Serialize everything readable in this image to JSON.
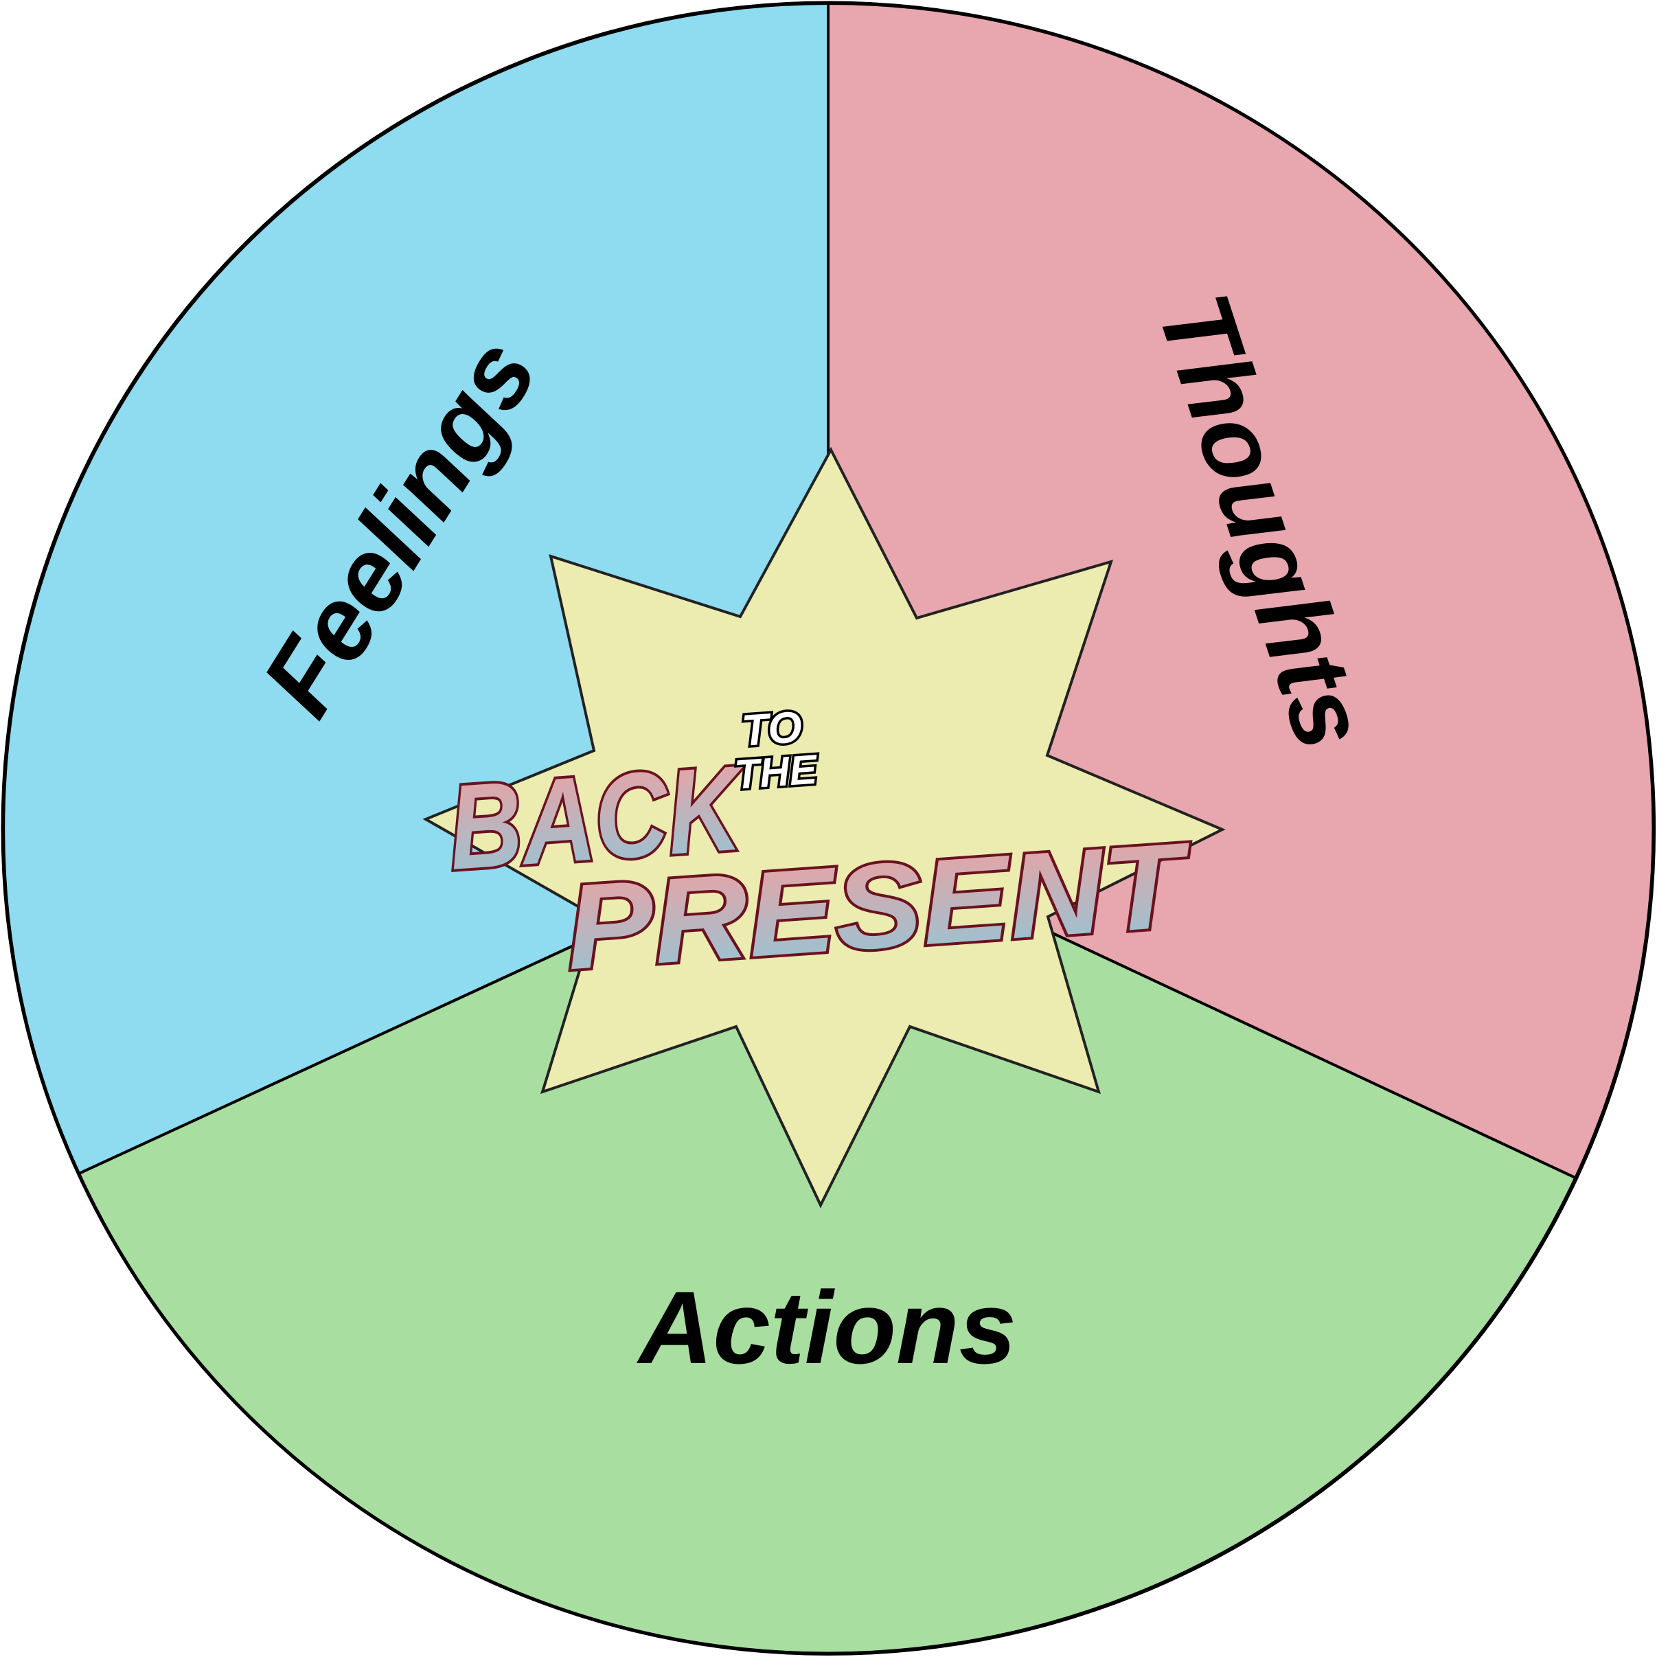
{
  "diagram": {
    "segments": [
      {
        "id": "feelings",
        "label": "Feelings",
        "color": "#8fdbef"
      },
      {
        "id": "thoughts",
        "label": "Thoughts",
        "color": "#e8a6ae"
      },
      {
        "id": "actions",
        "label": "Actions",
        "color": "#a8dea0"
      }
    ],
    "star_color": "#ecebb0",
    "outline_color": "#000000"
  },
  "logo": {
    "line1": "BACK",
    "to": "TO",
    "the": "THE",
    "line2": "PRESENT",
    "gradient_top": "#f0a0a0",
    "gradient_bottom": "#8fc7d8"
  }
}
